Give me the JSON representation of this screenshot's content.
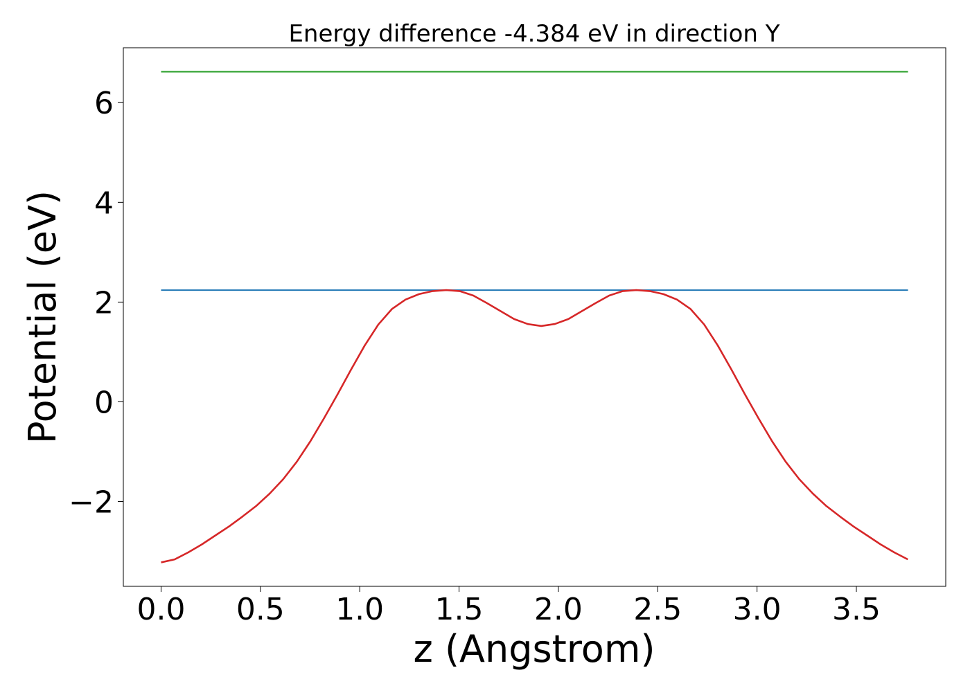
{
  "chart_data": {
    "type": "line",
    "title": "Energy difference -4.384 eV in direction Y",
    "xlabel": "z (Angstrom)",
    "ylabel": "Potential (eV)",
    "xlim": [
      -0.19,
      3.95
    ],
    "ylim": [
      -3.7,
      7.1
    ],
    "x_ticks": [
      0.0,
      0.5,
      1.0,
      1.5,
      2.0,
      2.5,
      3.0,
      3.5
    ],
    "x_tick_labels": [
      "0.0",
      "0.5",
      "1.0",
      "1.5",
      "2.0",
      "2.5",
      "3.0",
      "3.5"
    ],
    "y_ticks": [
      -2,
      0,
      2,
      4,
      6
    ],
    "y_tick_labels": [
      "−2",
      "0",
      "2",
      "4",
      "6"
    ],
    "grid": false,
    "legend": "none",
    "series": [
      {
        "kind": "hline",
        "color": "#2ca02c",
        "x": [
          0.0,
          3.76
        ],
        "values": [
          6.62,
          6.62
        ]
      },
      {
        "kind": "hline",
        "color": "#1f77b4",
        "x": [
          0.0,
          3.76
        ],
        "values": [
          2.24,
          2.24
        ]
      },
      {
        "kind": "line",
        "color": "#d62728",
        "x": [
          0.0,
          0.0683,
          0.1367,
          0.205,
          0.2734,
          0.3417,
          0.4101,
          0.4784,
          0.5468,
          0.6151,
          0.6835,
          0.7518,
          0.8202,
          0.8885,
          0.9569,
          1.0252,
          1.0936,
          1.1619,
          1.2303,
          1.2986,
          1.367,
          1.4353,
          1.5037,
          1.572,
          1.6404,
          1.7087,
          1.7771,
          1.8454,
          1.9138,
          1.9821,
          2.0505,
          2.1188,
          2.1872,
          2.2555,
          2.3239,
          2.3922,
          2.4606,
          2.5289,
          2.5973,
          2.6656,
          2.734,
          2.8023,
          2.8707,
          2.939,
          3.0074,
          3.0757,
          3.1441,
          3.2124,
          3.2808,
          3.3491,
          3.4175,
          3.4858,
          3.5542,
          3.6225,
          3.6909,
          3.7592
        ],
        "values": [
          -3.22,
          -3.16,
          -3.02,
          -2.86,
          -2.68,
          -2.5,
          -2.3,
          -2.09,
          -1.84,
          -1.55,
          -1.2,
          -0.79,
          -0.33,
          0.15,
          0.65,
          1.13,
          1.55,
          1.86,
          2.05,
          2.16,
          2.22,
          2.24,
          2.22,
          2.13,
          1.98,
          1.82,
          1.66,
          1.56,
          1.52,
          1.56,
          1.66,
          1.82,
          1.98,
          2.13,
          2.22,
          2.24,
          2.22,
          2.16,
          2.05,
          1.86,
          1.55,
          1.13,
          0.65,
          0.15,
          -0.33,
          -0.79,
          -1.2,
          -1.55,
          -1.84,
          -2.09,
          -2.3,
          -2.5,
          -2.68,
          -2.86,
          -3.02,
          -3.16
        ]
      }
    ]
  }
}
